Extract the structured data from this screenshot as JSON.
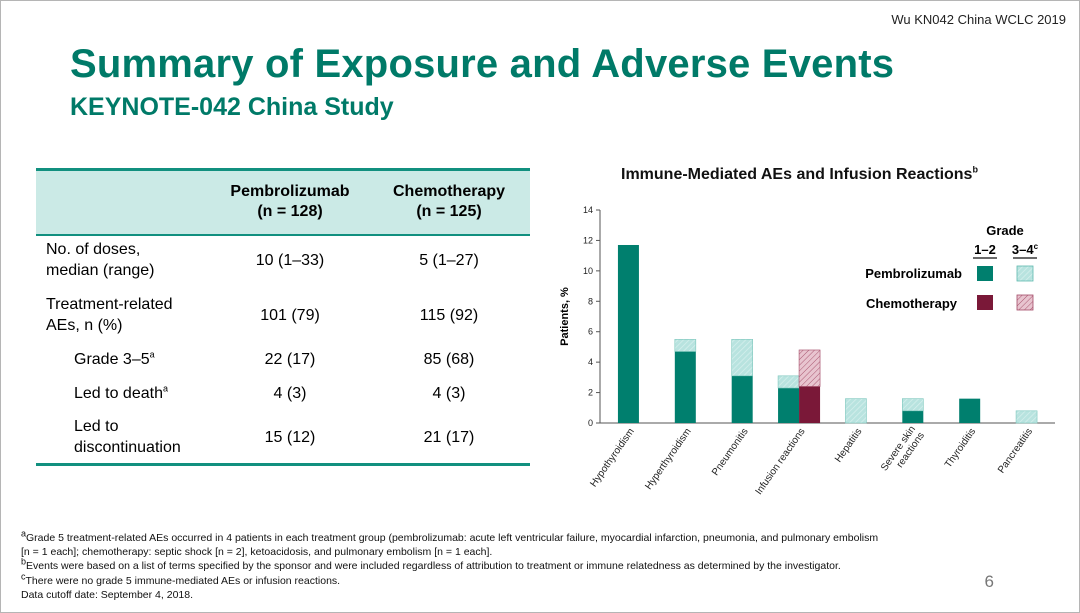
{
  "header": {
    "tag": "Wu KN042 China WCLC 2019",
    "title": "Summary of Exposure and Adverse Events",
    "subtitle": "KEYNOTE-042 China Study"
  },
  "table": {
    "col1_line1": "Pembrolizumab",
    "col1_line2": "(n = 128)",
    "col2_line1": "Chemotherapy",
    "col2_line2": "(n = 125)",
    "rows": [
      {
        "label1": "No. of doses,",
        "label2": "median (range)",
        "v1": "10 (1–33)",
        "v2": "5 (1–27)"
      },
      {
        "label1": "Treatment-related",
        "label2": "AEs, n (%)",
        "v1": "101 (79)",
        "v2": "115 (92)"
      },
      {
        "label1": "Grade 3–5",
        "sup": "a",
        "v1": "22 (17)",
        "v2": "85 (68)"
      },
      {
        "label1": "Led to death",
        "sup": "a",
        "v1": "4 (3)",
        "v2": "4 (3)"
      },
      {
        "label1": "Led to",
        "label2": "discontinuation",
        "v1": "15 (12)",
        "v2": "21 (17)"
      }
    ]
  },
  "chart_data": {
    "type": "bar",
    "title": "Immune-Mediated AEs and Infusion Reactions",
    "title_sup": "b",
    "ylabel": "Patients, %",
    "ylim": [
      0,
      14
    ],
    "yticks": [
      "0",
      "2",
      "4",
      "6",
      "8",
      "10",
      "12",
      "14"
    ],
    "categories": [
      "Hypothyroidism",
      "Hyperthyroidism",
      "Pneumonitis",
      "Infusion reactions",
      "Hepatitis",
      "Severe skin reactions",
      "Thyroiditis",
      "Pancreatitis"
    ],
    "series": [
      {
        "name": "Pembrolizumab Grade 1–2",
        "values": [
          11.7,
          4.7,
          3.1,
          2.3,
          0,
          0.8,
          1.6,
          0
        ]
      },
      {
        "name": "Pembrolizumab Grade 3–4",
        "values": [
          0,
          0.8,
          2.4,
          0.8,
          1.6,
          0.8,
          0,
          0.8
        ]
      },
      {
        "name": "Chemotherapy Grade 1–2",
        "values": [
          0,
          0,
          0,
          2.4,
          0,
          0,
          0,
          0
        ]
      },
      {
        "name": "Chemotherapy Grade 3–4",
        "values": [
          0,
          0,
          0,
          2.4,
          0,
          0,
          0,
          0
        ]
      }
    ],
    "legend": {
      "title": "Grade",
      "col1": "1–2",
      "col2": "3–4",
      "col2_sup": "c",
      "row1": "Pembrolizumab",
      "row2": "Chemotherapy"
    },
    "colors": {
      "pembro_solid": "#007f6e",
      "pembro_light": "#b8e3df",
      "chemo_solid": "#7a1838",
      "chemo_light": "#e8c4cf"
    }
  },
  "footnotes": {
    "a_mark": "a",
    "a_line1": "Grade 5 treatment-related AEs occurred in 4 patients in each treatment group (pembrolizumab: acute left ventricular failure, myocardial infarction, pneumonia, and pulmonary embolism",
    "a_line2": "[n = 1 each]; chemotherapy: septic shock [n = 2], ketoacidosis, and pulmonary embolism [n = 1 each].",
    "b_mark": "b",
    "b_line": "Events were based on a list of terms specified by the sponsor and were included regardless of attribution to treatment or immune relatedness as determined by the investigator.",
    "c_mark": "c",
    "c_line": "There were no grade 5 immune-mediated AEs or infusion reactions.",
    "cutoff": "Data cutoff date: September 4, 2018."
  },
  "page_number": "6"
}
